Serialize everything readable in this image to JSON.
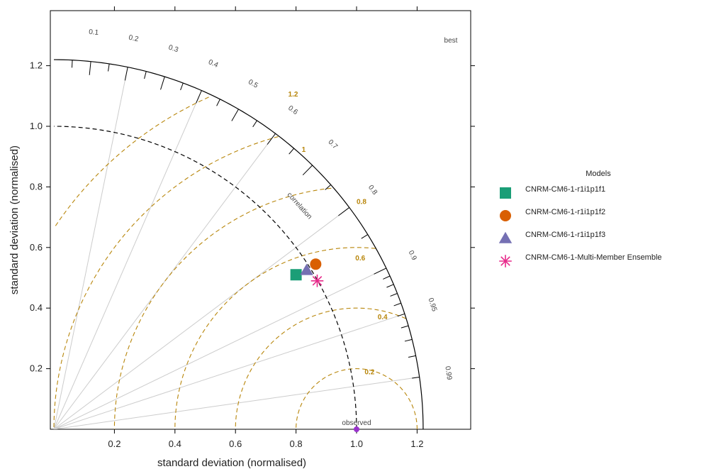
{
  "chart_data": {
    "type": "scatter",
    "subtype": "taylor-diagram",
    "xlabel": "standard deviation (normalised)",
    "ylabel": "standard deviation (normalised)",
    "xlim": [
      0,
      1.36
    ],
    "ylim": [
      0,
      1.36
    ],
    "x_ticks": [
      {
        "v": 0.2,
        "label": "0.2"
      },
      {
        "v": 0.4,
        "label": "0.4"
      },
      {
        "v": 0.6,
        "label": "0.6"
      },
      {
        "v": 0.8,
        "label": "0.8"
      },
      {
        "v": 1.0,
        "label": "1.0"
      },
      {
        "v": 1.2,
        "label": "1.2"
      }
    ],
    "y_ticks": [
      {
        "v": 0.2,
        "label": "0.2"
      },
      {
        "v": 0.4,
        "label": "0.4"
      },
      {
        "v": 0.6,
        "label": "0.6"
      },
      {
        "v": 0.8,
        "label": "0.8"
      },
      {
        "v": 1.0,
        "label": "1.0"
      },
      {
        "v": 1.2,
        "label": "1.2"
      }
    ],
    "max_sd": 1.22,
    "correlation_title": "correlation",
    "correlation_labels": [
      {
        "r": 0.1,
        "label": "0.1"
      },
      {
        "r": 0.2,
        "label": "0.2"
      },
      {
        "r": 0.3,
        "label": "0.3"
      },
      {
        "r": 0.4,
        "label": "0.4"
      },
      {
        "r": 0.5,
        "label": "0.5"
      },
      {
        "r": 0.6,
        "label": "0.6"
      },
      {
        "r": 0.7,
        "label": "0.7"
      },
      {
        "r": 0.8,
        "label": "0.8"
      },
      {
        "r": 0.9,
        "label": "0.9"
      },
      {
        "r": 0.95,
        "label": "0.95"
      },
      {
        "r": 0.99,
        "label": "0.99"
      }
    ],
    "correlation_lines": [
      0.2,
      0.4,
      0.6,
      0.8,
      0.9,
      0.95,
      0.99
    ],
    "rms_contours": [
      {
        "v": 0.2,
        "label": "0.2"
      },
      {
        "v": 0.4,
        "label": "0.4"
      },
      {
        "v": 0.6,
        "label": "0.6"
      },
      {
        "v": 0.8,
        "label": "0.8"
      },
      {
        "v": 1.0,
        "label": "1"
      },
      {
        "v": 1.2,
        "label": "1.2"
      }
    ],
    "reference_sd": 1.0,
    "observed_label": "observed",
    "best_label": "best",
    "legend": {
      "title": "Models",
      "placement": "right"
    },
    "series": [
      {
        "name": "CNRM-CM6-1-r1i1p1f1",
        "x": 0.8,
        "y": 0.51,
        "marker": "square",
        "color": "#1b9e77"
      },
      {
        "name": "CNRM-CM6-1-r1i1p1f2",
        "x": 0.865,
        "y": 0.545,
        "marker": "circle",
        "color": "#d95f02"
      },
      {
        "name": "CNRM-CM6-1-r1i1p1f3",
        "x": 0.835,
        "y": 0.525,
        "marker": "triangle",
        "color": "#7570b3"
      },
      {
        "name": "CNRM-CM6-1-Multi-Member Ensemble",
        "x": 0.87,
        "y": 0.49,
        "marker": "asterisk",
        "color": "#e7298a"
      }
    ],
    "colors": {
      "rms": "#b8860b",
      "rms_label": "#b8860b",
      "observed": "#9932cc",
      "grid": "#cccccc",
      "arc": "#000000"
    }
  }
}
